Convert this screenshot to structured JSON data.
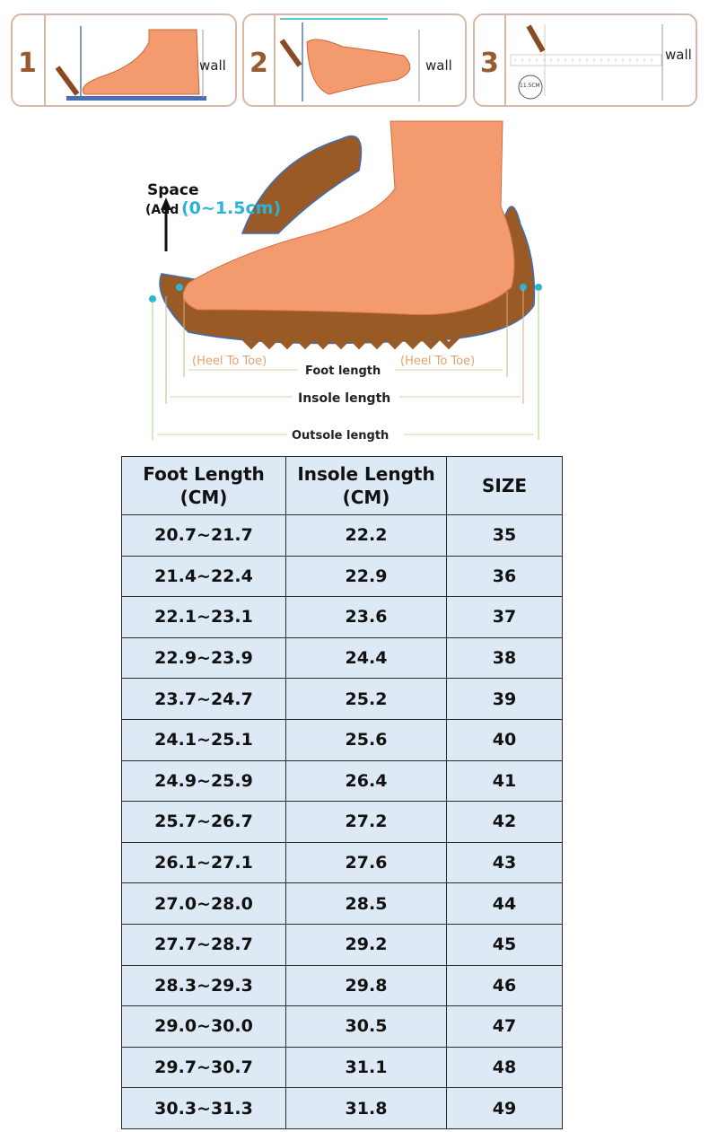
{
  "steps": [
    {
      "number": "1",
      "wall_label": "wall"
    },
    {
      "number": "2",
      "wall_label": "wall"
    },
    {
      "number": "3",
      "wall_label": "wall",
      "ruler_badge": "11.5CM"
    }
  ],
  "diagram": {
    "space_label": "Space",
    "add_label": "(Add",
    "add_value": "(0~1.5cm)",
    "heel_to_toe_left": "(Heel To Toe)",
    "heel_to_toe_right": "(Heel To Toe)",
    "foot_length": "Foot length",
    "insole_length": "Insole length",
    "outsole_length": "Outsole length",
    "colors": {
      "skin": "#f39a6e",
      "sole": "#9a5a25",
      "accent": "#2ab3d6"
    }
  },
  "size_table": {
    "headers": [
      [
        "Foot Length",
        "(CM)"
      ],
      [
        "Insole Length",
        "(CM)"
      ],
      [
        "SIZE"
      ]
    ],
    "rows": [
      [
        "20.7~21.7",
        "22.2",
        "35"
      ],
      [
        "21.4~22.4",
        "22.9",
        "36"
      ],
      [
        "22.1~23.1",
        "23.6",
        "37"
      ],
      [
        "22.9~23.9",
        "24.4",
        "38"
      ],
      [
        "23.7~24.7",
        "25.2",
        "39"
      ],
      [
        "24.1~25.1",
        "25.6",
        "40"
      ],
      [
        "24.9~25.9",
        "26.4",
        "41"
      ],
      [
        "25.7~26.7",
        "27.2",
        "42"
      ],
      [
        "26.1~27.1",
        "27.6",
        "43"
      ],
      [
        "27.0~28.0",
        "28.5",
        "44"
      ],
      [
        "27.7~28.7",
        "29.2",
        "45"
      ],
      [
        "28.3~29.3",
        "29.8",
        "46"
      ],
      [
        "29.0~30.0",
        "30.5",
        "47"
      ],
      [
        "29.7~30.7",
        "31.1",
        "48"
      ],
      [
        "30.3~31.3",
        "31.8",
        "49"
      ]
    ],
    "background": "#dde9f5"
  }
}
